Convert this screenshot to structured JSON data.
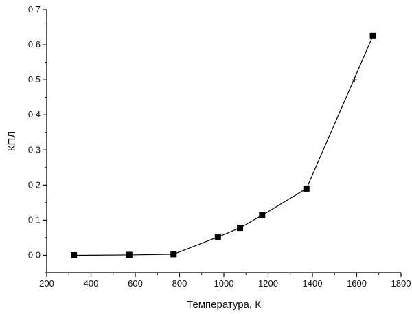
{
  "chart_data": {
    "type": "line",
    "xlabel": "Температура, К",
    "ylabel": "КПЛ",
    "xlim": [
      200,
      1800
    ],
    "ylim": [
      -0.05,
      0.7
    ],
    "xticks": [
      200,
      400,
      600,
      800,
      1000,
      1200,
      1400,
      1600,
      1800
    ],
    "xtick_labels": [
      "200",
      "400",
      "600",
      "800",
      "1000",
      "1200",
      "1400",
      "1600",
      "1800"
    ],
    "yticks": [
      0.0,
      0.1,
      0.2,
      0.3,
      0.4,
      0.5,
      0.6,
      0.7
    ],
    "ytick_labels": [
      "0 0",
      "0 1",
      "0 2",
      "0 3",
      "0 4",
      "0 5",
      "0 6",
      "0 7"
    ],
    "grid": false,
    "legend": "none",
    "series": [
      {
        "x": [
          323,
          573,
          773,
          973,
          1073,
          1173,
          1373,
          1673
        ],
        "y": [
          0.0,
          0.001,
          0.003,
          0.052,
          0.078,
          0.114,
          0.19,
          0.625
        ],
        "marker": "square",
        "color": "#000000"
      }
    ],
    "extra_points": [
      {
        "x": 1590,
        "y": 0.5,
        "marker": "plus"
      }
    ]
  }
}
